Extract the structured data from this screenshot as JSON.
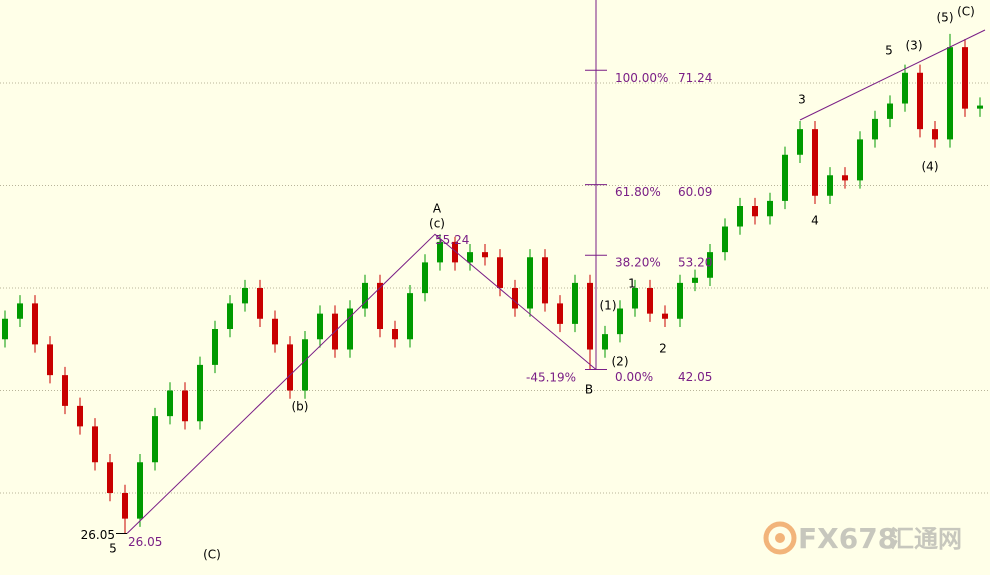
{
  "chart_data": {
    "type": "candlestick",
    "up_color": "#009a00",
    "down_color": "#c80000",
    "ylim": [
      22,
      78.1
    ],
    "yticks": [
      30,
      40,
      50,
      60,
      70
    ],
    "grid": true,
    "open": [
      45,
      47,
      48.5,
      44.5,
      41.5,
      38.5,
      36.5,
      33,
      30,
      27.5,
      33,
      37.5,
      40,
      37,
      42.5,
      46,
      48.5,
      50,
      47,
      44.5,
      40,
      45,
      47.5,
      44,
      48,
      50.5,
      46,
      45,
      49.5,
      52.5,
      54.5,
      52.5,
      53.5,
      53,
      50,
      48,
      53,
      48.5,
      46.5,
      50.5,
      44,
      45.5,
      48,
      50,
      47.5,
      47,
      50.5,
      51,
      53.5,
      56,
      58,
      57,
      58.5,
      63,
      65.5,
      59,
      61,
      60.5,
      64.5,
      66.5,
      68,
      71,
      65.5,
      64.5,
      73.5,
      67.5
    ],
    "high": [
      47.8,
      49.3,
      49.3,
      45.3,
      42.3,
      39.3,
      37.3,
      33.8,
      30.8,
      33.8,
      38.3,
      40.8,
      40.8,
      43.3,
      46.8,
      49.3,
      50.8,
      50.8,
      47.8,
      45.3,
      45.8,
      48.3,
      48.3,
      48.8,
      51.3,
      51.3,
      46.8,
      50.3,
      53.3,
      55.24,
      55.0,
      54.3,
      54.3,
      53.8,
      50.8,
      53.8,
      53.8,
      49.3,
      51.3,
      51.3,
      46.3,
      48.8,
      50.8,
      50.8,
      48.3,
      51.3,
      51.8,
      54.3,
      56.8,
      58.8,
      58.8,
      59.3,
      63.8,
      66.3,
      66.3,
      61.8,
      61.8,
      65.3,
      67.3,
      68.8,
      71.8,
      71.8,
      66.3,
      74.8,
      74.3,
      68.6
    ],
    "low": [
      44.2,
      46.2,
      43.7,
      40.7,
      37.7,
      35.7,
      32.2,
      29.2,
      26.05,
      26.7,
      32.2,
      36.7,
      36.2,
      36.2,
      41.7,
      45.2,
      47.7,
      46.2,
      43.7,
      39.2,
      39.2,
      44.2,
      43.2,
      43.2,
      47.2,
      45.2,
      44.2,
      44.2,
      48.7,
      51.7,
      51.7,
      51.7,
      52.2,
      49.2,
      47.2,
      47.2,
      47.7,
      45.7,
      45.7,
      42.05,
      43.2,
      44.7,
      47.2,
      46.7,
      46.2,
      46.2,
      49.7,
      50.2,
      52.7,
      55.2,
      56.2,
      56.2,
      57.7,
      62.2,
      58.2,
      58.2,
      59.7,
      59.7,
      63.7,
      65.7,
      67.2,
      64.7,
      63.7,
      63.7,
      66.7,
      66.7
    ],
    "close": [
      47,
      48.5,
      44.5,
      41.5,
      38.5,
      36.5,
      33,
      30,
      27.5,
      33,
      37.5,
      40,
      37,
      42.5,
      46,
      48.5,
      50,
      47,
      44.5,
      40,
      45,
      47.5,
      44,
      48,
      50.5,
      46,
      45,
      49.5,
      52.5,
      54.5,
      52.5,
      53.5,
      53,
      50,
      48,
      53,
      48.5,
      46.5,
      50.5,
      44,
      45.5,
      48,
      50,
      47.5,
      47,
      50.5,
      51,
      53.5,
      56,
      58,
      57,
      58.5,
      63,
      65.5,
      59,
      61,
      60.5,
      64.5,
      66.5,
      68,
      71,
      65.5,
      64.5,
      73.5,
      67.5,
      67.8
    ],
    "fibonacci": {
      "color": "#7a1f86",
      "levels": [
        {
          "ratio": {
            "value": 100,
            "label": "100.00%"
          },
          "price": 71.24
        },
        {
          "ratio": {
            "value": 61.8,
            "label": "61.80%"
          },
          "price": 60.09
        },
        {
          "ratio": {
            "value": 38.2,
            "label": "38.20%"
          },
          "price": {
            "value": 53.2,
            "label": "53.20"
          }
        },
        {
          "ratio": {
            "value": 0,
            "label": "0.00%"
          },
          "price": 42.05
        }
      ]
    },
    "annotations": {
      "low": 26.05,
      "high": 55.24,
      "retracement": {
        "value": -45.19,
        "label": "-45.19%"
      }
    },
    "wave_labels": [
      "5",
      "(C)",
      "(b)",
      "A",
      "(c)",
      "B",
      "(1)",
      "1",
      "(2)",
      "2",
      "3",
      "4",
      "5",
      "(3)",
      "(4)",
      "(5)",
      "(C)"
    ],
    "watermark": {
      "brand": "FX678",
      "name": "汇通网"
    }
  }
}
